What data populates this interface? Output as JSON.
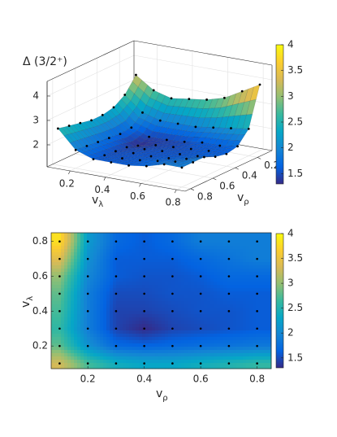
{
  "chart_data": [
    {
      "type": "surface",
      "zlabel": "Δ (3/2⁺)",
      "xlabel": "v",
      "xlabel_sub": "ρ",
      "ylabel": "v",
      "ylabel_sub": "λ",
      "x": [
        0.1,
        0.2,
        0.3,
        0.4,
        0.5,
        0.6,
        0.7,
        0.8
      ],
      "y": [
        0.1,
        0.2,
        0.3,
        0.4,
        0.5,
        0.6,
        0.7,
        0.8
      ],
      "z": [
        [
          3.3,
          2.7,
          2.4,
          2.3,
          2.3,
          2.4,
          2.5,
          2.6
        ],
        [
          2.8,
          2.1,
          1.7,
          1.65,
          1.7,
          1.75,
          1.8,
          1.85
        ],
        [
          2.6,
          1.9,
          1.45,
          1.3,
          1.45,
          1.5,
          1.55,
          1.6
        ],
        [
          2.7,
          1.9,
          1.45,
          1.45,
          1.5,
          1.55,
          1.55,
          1.6
        ],
        [
          2.8,
          1.9,
          1.5,
          1.5,
          1.55,
          1.55,
          1.6,
          1.6
        ],
        [
          3.0,
          2.0,
          1.6,
          1.55,
          1.55,
          1.6,
          1.7,
          1.7
        ],
        [
          3.4,
          2.1,
          1.6,
          1.6,
          1.6,
          1.7,
          1.8,
          1.9
        ],
        [
          3.8,
          2.2,
          1.7,
          1.6,
          1.7,
          1.9,
          1.9,
          1.9
        ]
      ],
      "xlim": [
        0.07,
        0.85
      ],
      "xticks": [
        0.2,
        0.4,
        0.6,
        0.8
      ],
      "ylim": [
        0.07,
        0.85
      ],
      "yticks": [
        0.2,
        0.4,
        0.6,
        0.8
      ],
      "zlim": [
        1.1,
        4.6
      ],
      "zticks": [
        2,
        3,
        4
      ],
      "clim": [
        1.3,
        4
      ],
      "cticks": [
        1.5,
        2,
        2.5,
        3,
        3.5,
        4
      ],
      "colormap": [
        "#352a87",
        "#0363e1",
        "#1485d4",
        "#06a7c6",
        "#38b99e",
        "#92bf73",
        "#d9ba56",
        "#fcce2e",
        "#f9fb0e"
      ],
      "grid": true
    },
    {
      "type": "contour",
      "xlabel": "v",
      "xlabel_sub": "ρ",
      "ylabel": "v",
      "ylabel_sub": "λ",
      "x": [
        0.1,
        0.2,
        0.3,
        0.4,
        0.5,
        0.6,
        0.7,
        0.8
      ],
      "y": [
        0.1,
        0.2,
        0.3,
        0.4,
        0.5,
        0.6,
        0.7,
        0.8
      ],
      "z": [
        [
          3.3,
          2.7,
          2.4,
          2.3,
          2.3,
          2.4,
          2.5,
          2.6
        ],
        [
          2.8,
          2.1,
          1.7,
          1.65,
          1.7,
          1.75,
          1.8,
          1.85
        ],
        [
          2.6,
          1.9,
          1.45,
          1.3,
          1.45,
          1.5,
          1.55,
          1.6
        ],
        [
          2.7,
          1.9,
          1.45,
          1.45,
          1.5,
          1.55,
          1.55,
          1.6
        ],
        [
          2.8,
          1.9,
          1.5,
          1.5,
          1.55,
          1.55,
          1.6,
          1.6
        ],
        [
          3.0,
          2.0,
          1.6,
          1.55,
          1.55,
          1.6,
          1.7,
          1.7
        ],
        [
          3.4,
          2.1,
          1.6,
          1.6,
          1.6,
          1.7,
          1.8,
          1.9
        ],
        [
          3.8,
          2.2,
          1.7,
          1.6,
          1.7,
          1.9,
          1.9,
          1.9
        ]
      ],
      "xlim": [
        0.07,
        0.85
      ],
      "xticks": [
        0.2,
        0.4,
        0.6,
        0.8
      ],
      "ylim": [
        0.07,
        0.85
      ],
      "yticks": [
        0.2,
        0.4,
        0.6,
        0.8
      ],
      "clim": [
        1.3,
        4
      ],
      "cticks": [
        1.5,
        2,
        2.5,
        3,
        3.5,
        4
      ],
      "colormap": [
        "#352a87",
        "#0363e1",
        "#1485d4",
        "#06a7c6",
        "#38b99e",
        "#92bf73",
        "#d9ba56",
        "#fcce2e",
        "#f9fb0e"
      ]
    }
  ]
}
